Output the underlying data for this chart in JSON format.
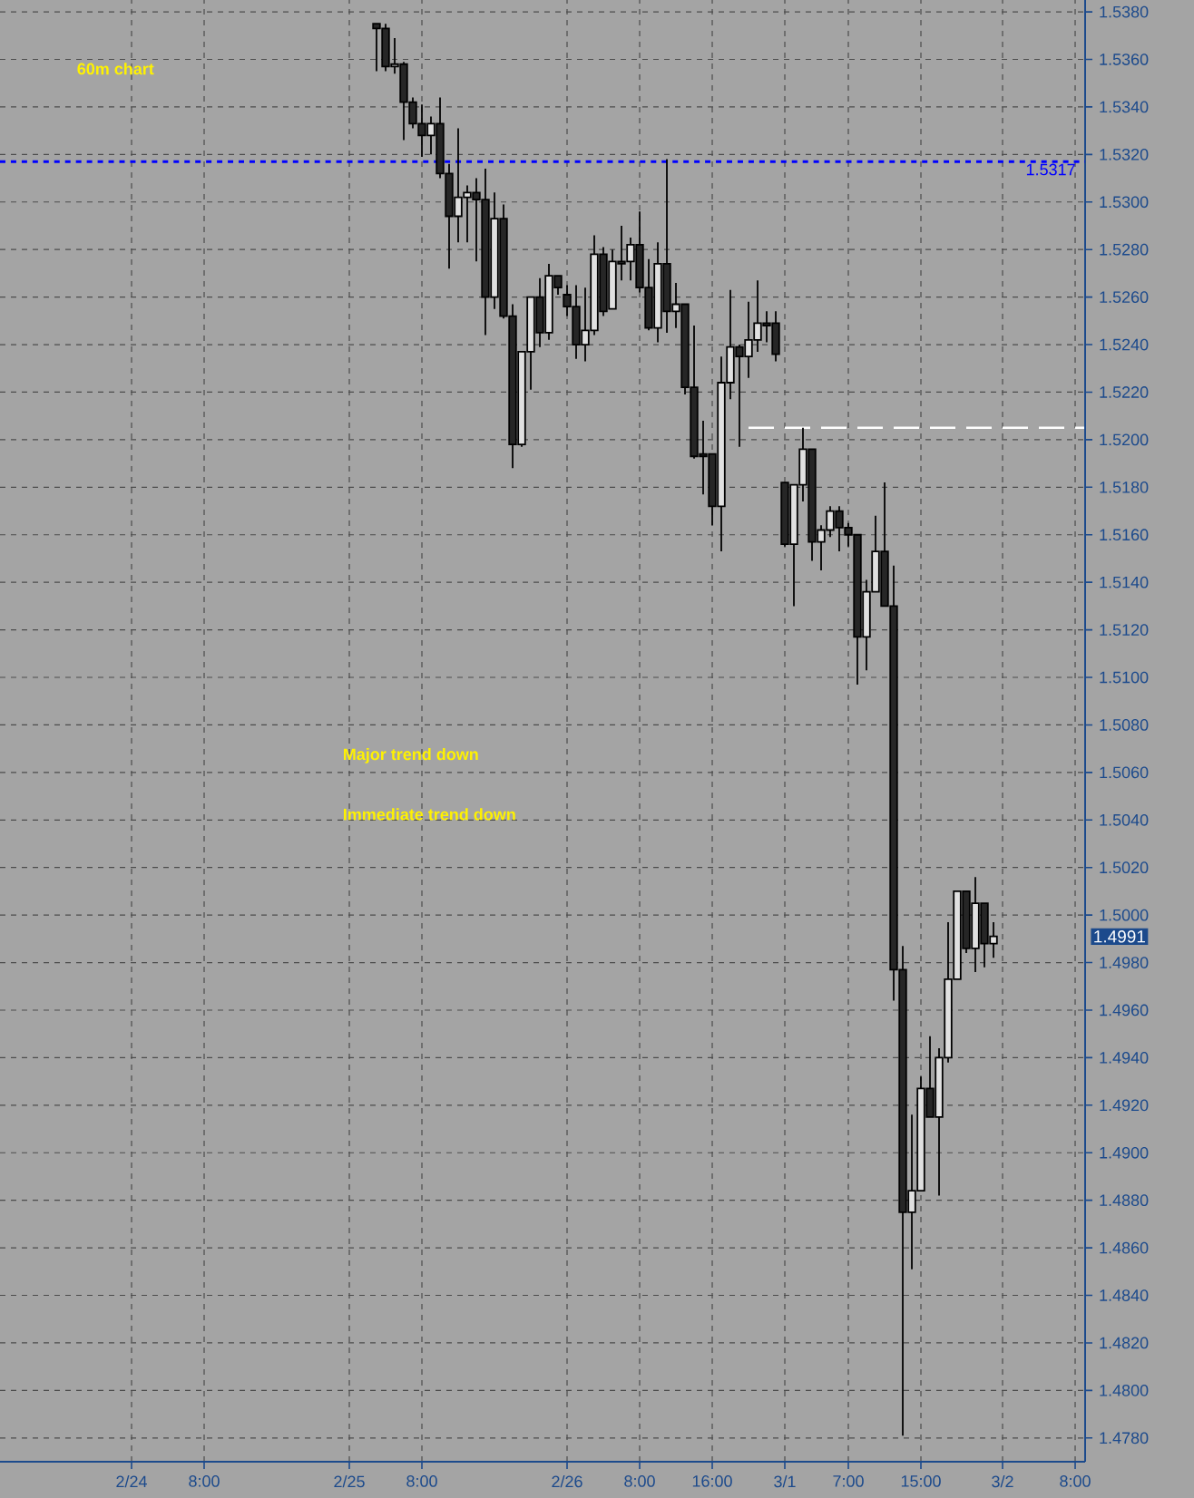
{
  "chart_data": {
    "type": "candlestick",
    "categories": [
      null,
      null,
      null,
      null,
      null,
      null,
      null,
      null,
      null,
      null,
      null,
      null,
      null,
      null,
      "2/24",
      null,
      null,
      null,
      null,
      null,
      null,
      null,
      "8:00",
      null,
      null,
      null,
      null,
      null,
      null,
      null,
      null,
      null,
      null,
      null,
      null,
      null,
      null,
      null,
      "2/25",
      null,
      null,
      null,
      null,
      null,
      null,
      null,
      "8:00",
      null,
      null,
      null,
      null,
      null,
      null,
      null,
      null,
      null,
      null,
      null,
      null,
      null,
      null,
      null,
      "2/26",
      null,
      null,
      null,
      null,
      null,
      null,
      null,
      "8:00",
      null,
      null,
      null,
      null,
      null,
      null,
      null,
      "16:00",
      null,
      null,
      null,
      null,
      null,
      null,
      null,
      "3/1",
      null,
      null,
      null,
      null,
      null,
      null,
      "7:00",
      null,
      null,
      null,
      null,
      null,
      null,
      null,
      "15:00",
      null,
      null,
      null,
      null,
      null,
      null,
      null,
      null,
      "3/2",
      null,
      null,
      null,
      null,
      null,
      null,
      null,
      "8:00",
      null
    ],
    "ohlc": [
      null,
      null,
      null,
      null,
      null,
      null,
      null,
      null,
      null,
      null,
      null,
      null,
      null,
      null,
      null,
      null,
      null,
      null,
      null,
      null,
      null,
      null,
      null,
      null,
      null,
      null,
      null,
      null,
      null,
      null,
      null,
      null,
      null,
      null,
      null,
      null,
      null,
      null,
      null,
      null,
      null,
      [
        1.5375,
        1.5375,
        1.5355,
        1.5373
      ],
      [
        1.5373,
        1.5375,
        1.5355,
        1.5357
      ],
      [
        1.5357,
        1.5369,
        1.5354,
        1.5358
      ],
      [
        1.5358,
        1.5359,
        1.5326,
        1.5342
      ],
      [
        1.5342,
        1.5344,
        1.5331,
        1.5333
      ],
      [
        1.5333,
        1.5341,
        1.5319,
        1.5328
      ],
      [
        1.5328,
        1.5336,
        1.532,
        1.5333
      ],
      [
        1.5333,
        1.5344,
        1.531,
        1.5312
      ],
      [
        1.5312,
        1.5316,
        1.5272,
        1.5294
      ],
      [
        1.5294,
        1.5331,
        1.5283,
        1.5302
      ],
      [
        1.5302,
        1.5307,
        1.5283,
        1.5304
      ],
      [
        1.5304,
        1.531,
        1.5275,
        1.5301
      ],
      [
        1.5301,
        1.5314,
        1.5244,
        1.526
      ],
      [
        1.526,
        1.5304,
        1.5255,
        1.5293
      ],
      [
        1.5293,
        1.5299,
        1.5251,
        1.5252
      ],
      [
        1.5252,
        1.5257,
        1.5188,
        1.5198
      ],
      [
        1.5198,
        1.5237,
        1.5197,
        1.5237
      ],
      [
        1.5237,
        1.526,
        1.5221,
        1.526
      ],
      [
        1.526,
        1.5268,
        1.5239,
        1.5245
      ],
      [
        1.5245,
        1.5274,
        1.5242,
        1.5269
      ],
      [
        1.5269,
        1.5269,
        1.5261,
        1.5264
      ],
      [
        1.5261,
        1.5265,
        1.5252,
        1.5256
      ],
      [
        1.5256,
        1.5265,
        1.5234,
        1.524
      ],
      [
        1.524,
        1.5264,
        1.5233,
        1.5246
      ],
      [
        1.5246,
        1.5286,
        1.5244,
        1.5278
      ],
      [
        1.5278,
        1.5281,
        1.5252,
        1.5254
      ],
      [
        1.5255,
        1.528,
        1.5255,
        1.5275
      ],
      [
        1.5275,
        1.529,
        1.5267,
        1.5274
      ],
      [
        1.5275,
        1.5285,
        1.5267,
        1.5282
      ],
      [
        1.5282,
        1.5296,
        1.5262,
        1.5264
      ],
      [
        1.5264,
        1.5276,
        1.5246,
        1.5247
      ],
      [
        1.5247,
        1.5283,
        1.5241,
        1.5274
      ],
      [
        1.5274,
        1.5318,
        1.5245,
        1.5254
      ],
      [
        1.5254,
        1.5266,
        1.5247,
        1.5257
      ],
      [
        1.5257,
        1.5257,
        1.5219,
        1.5222
      ],
      [
        1.5222,
        1.5248,
        1.5192,
        1.5193
      ],
      [
        1.5194,
        1.5208,
        1.5177,
        1.5193
      ],
      [
        1.5194,
        1.5194,
        1.5164,
        1.5172
      ],
      [
        1.5172,
        1.5235,
        1.5153,
        1.5224
      ],
      [
        1.5224,
        1.5263,
        1.5217,
        1.5239
      ],
      [
        1.5239,
        1.524,
        1.5197,
        1.5235
      ],
      [
        1.5235,
        1.5258,
        1.5226,
        1.5242
      ],
      [
        1.5242,
        1.5267,
        1.5237,
        1.5249
      ],
      [
        1.5249,
        1.5254,
        1.5241,
        1.5248
      ],
      [
        1.5249,
        1.5254,
        1.5233,
        1.5236
      ],
      [
        1.5182,
        1.5182,
        1.5155,
        1.5156
      ],
      [
        1.5156,
        1.5181,
        1.513,
        1.5181
      ],
      [
        1.5181,
        1.5205,
        1.5174,
        1.5196
      ],
      [
        1.5196,
        1.5196,
        1.5149,
        1.5157
      ],
      [
        1.5157,
        1.5164,
        1.5145,
        1.5162
      ],
      [
        1.5162,
        1.5172,
        1.5159,
        1.517
      ],
      [
        1.517,
        1.5172,
        1.5153,
        1.5163
      ],
      [
        1.5163,
        1.5165,
        1.5155,
        1.516
      ],
      [
        1.516,
        1.516,
        1.5097,
        1.5117
      ],
      [
        1.5117,
        1.5141,
        1.5103,
        1.5136
      ],
      [
        1.5136,
        1.5168,
        1.5136,
        1.5153
      ],
      [
        1.5153,
        1.5182,
        1.513,
        1.513
      ],
      [
        1.513,
        1.5147,
        1.4964,
        1.4977
      ],
      [
        1.4977,
        1.4987,
        1.4781,
        1.4875
      ],
      [
        1.4875,
        1.4916,
        1.4851,
        1.4884
      ],
      [
        1.4884,
        1.4932,
        1.4884,
        1.4927
      ],
      [
        1.4927,
        1.4949,
        1.4915,
        1.4915
      ],
      [
        1.4915,
        1.4944,
        1.4882,
        1.494
      ],
      [
        1.494,
        1.4997,
        1.4938,
        1.4973
      ],
      [
        1.4973,
        1.501,
        1.4973,
        1.501
      ],
      [
        1.501,
        1.501,
        1.4984,
        1.4986
      ],
      [
        1.4986,
        1.5016,
        1.4976,
        1.5005
      ],
      [
        1.5005,
        1.5005,
        1.4978,
        1.4988
      ],
      [
        1.4988,
        1.4997,
        1.4982,
        1.4991
      ],
      null,
      null,
      null,
      null,
      null,
      null,
      null,
      null,
      null,
      null
    ],
    "series": [
      {
        "type": "line",
        "color": "#ffffff",
        "line_style": "dashed",
        "values": [
          null,
          null,
          null,
          null,
          null,
          null,
          null,
          null,
          null,
          null,
          null,
          null,
          null,
          null,
          null,
          null,
          null,
          null,
          null,
          null,
          null,
          null,
          null,
          null,
          null,
          null,
          null,
          null,
          null,
          null,
          null,
          null,
          null,
          null,
          null,
          null,
          null,
          null,
          null,
          null,
          null,
          null,
          null,
          null,
          null,
          null,
          null,
          null,
          null,
          null,
          null,
          null,
          null,
          null,
          null,
          null,
          null,
          null,
          null,
          null,
          null,
          null,
          null,
          null,
          null,
          null,
          null,
          null,
          null,
          null,
          null,
          null,
          null,
          null,
          null,
          null,
          null,
          null,
          null,
          null,
          null,
          null,
          1.5205,
          1.5205,
          1.5205,
          1.5205,
          1.5205,
          1.5205,
          1.5205,
          1.5205,
          1.5205,
          1.5205,
          1.5205,
          1.5205,
          1.5205,
          1.5205,
          1.5205,
          1.5205,
          1.5205,
          1.5205,
          1.5205,
          1.5205,
          1.5205,
          1.5205,
          1.5205,
          1.5205,
          1.5205,
          1.5205,
          1.5205,
          1.5205,
          1.5205,
          1.5205,
          1.5205,
          1.5205,
          1.5205,
          1.5205,
          1.5205,
          1.5205,
          1.5205,
          1.5205
        ]
      }
    ],
    "ylim": [
      1.477,
      1.5385
    ],
    "yticks": [
      {
        "value": 1.478,
        "label": "1.4780"
      },
      {
        "value": 1.48,
        "label": "1.4800"
      },
      {
        "value": 1.482,
        "label": "1.4820"
      },
      {
        "value": 1.484,
        "label": "1.4840"
      },
      {
        "value": 1.486,
        "label": "1.4860"
      },
      {
        "value": 1.488,
        "label": "1.4880"
      },
      {
        "value": 1.49,
        "label": "1.4900"
      },
      {
        "value": 1.492,
        "label": "1.4920"
      },
      {
        "value": 1.494,
        "label": "1.4940"
      },
      {
        "value": 1.496,
        "label": "1.4960"
      },
      {
        "value": 1.498,
        "label": "1.4980"
      },
      {
        "value": 1.5,
        "label": "1.5000"
      },
      {
        "value": 1.502,
        "label": "1.5020"
      },
      {
        "value": 1.504,
        "label": "1.5040"
      },
      {
        "value": 1.506,
        "label": "1.5060"
      },
      {
        "value": 1.508,
        "label": "1.5080"
      },
      {
        "value": 1.51,
        "label": "1.5100"
      },
      {
        "value": 1.512,
        "label": "1.5120"
      },
      {
        "value": 1.514,
        "label": "1.5140"
      },
      {
        "value": 1.516,
        "label": "1.5160"
      },
      {
        "value": 1.518,
        "label": "1.5180"
      },
      {
        "value": 1.52,
        "label": "1.5200"
      },
      {
        "value": 1.522,
        "label": "1.5220"
      },
      {
        "value": 1.524,
        "label": "1.5240"
      },
      {
        "value": 1.526,
        "label": "1.5260"
      },
      {
        "value": 1.528,
        "label": "1.5280"
      },
      {
        "value": 1.53,
        "label": "1.5300"
      },
      {
        "value": 1.532,
        "label": "1.5320"
      },
      {
        "value": 1.534,
        "label": "1.5340"
      },
      {
        "value": 1.536,
        "label": "1.5360"
      },
      {
        "value": 1.538,
        "label": "1.5380"
      }
    ],
    "grid": true,
    "ref_lines": [
      {
        "axis": "y",
        "value": 1.5317,
        "label": "1.5317",
        "color": "#0000ff",
        "line_style": "dashed"
      }
    ],
    "annotations": [
      "60m chart",
      "Major trend down",
      "Immediate trend down",
      "1.4991"
    ]
  }
}
